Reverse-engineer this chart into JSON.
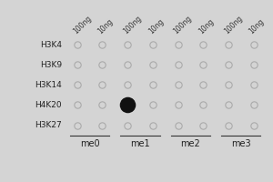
{
  "rows": [
    "H3K4",
    "H3K9",
    "H3K14",
    "H4K20",
    "H3K27"
  ],
  "col_groups": [
    "me0",
    "me1",
    "me2",
    "me3"
  ],
  "col_labels": [
    "100ng",
    "10ng",
    "100ng",
    "10ng",
    "100ng",
    "10ng",
    "100ng",
    "10ng"
  ],
  "filled_dot": {
    "row": 3,
    "col": 2
  },
  "background_color": "#d4d4d4",
  "open_dot_edge": "#aaaaaa",
  "open_dot_face": "#d4d4d4",
  "filled_dot_color": "#111111",
  "dot_size_open": 28,
  "dot_size_filled": 160,
  "row_label_fontsize": 6.5,
  "col_label_fontsize": 5.5,
  "group_label_fontsize": 7,
  "line_color": "#333333"
}
